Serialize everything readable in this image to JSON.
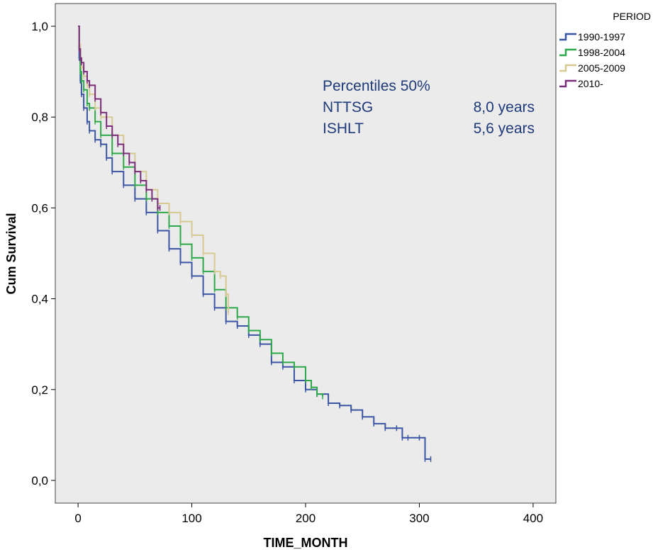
{
  "chart_data": {
    "type": "line",
    "xlabel": "TIME_MONTH",
    "ylabel": "Cum Survival",
    "xlim": [
      -20,
      420
    ],
    "ylim": [
      -0.05,
      1.05
    ],
    "x_ticks": [
      0,
      100,
      200,
      300,
      400
    ],
    "y_ticks": [
      0.0,
      0.2,
      0.4,
      0.6,
      0.8,
      1.0
    ],
    "x_tick_labels": [
      "0",
      "100",
      "200",
      "300",
      "400"
    ],
    "y_tick_labels": [
      "0,0",
      "0,2",
      "0,4",
      "0,6",
      "0,8",
      "1,0"
    ],
    "grid": false,
    "legend": {
      "title": "PERIOD",
      "position": "top-right"
    },
    "annotations": [
      {
        "label": "Percentiles 50%",
        "value": ""
      },
      {
        "label": "NTTSG",
        "value": "8,0 years"
      },
      {
        "label": "ISHLT",
        "value": "5,6 years"
      }
    ],
    "series": [
      {
        "name": "1990-1997",
        "color": "#3b54a4",
        "x": [
          0,
          1,
          2,
          3,
          5,
          8,
          10,
          15,
          20,
          25,
          30,
          40,
          50,
          60,
          70,
          80,
          90,
          100,
          110,
          120,
          130,
          140,
          150,
          160,
          170,
          180,
          190,
          200,
          210,
          220,
          230,
          240,
          250,
          260,
          270,
          280,
          285,
          290,
          300,
          305,
          310
        ],
        "y": [
          1.0,
          0.93,
          0.88,
          0.85,
          0.82,
          0.79,
          0.77,
          0.75,
          0.74,
          0.71,
          0.68,
          0.65,
          0.62,
          0.59,
          0.55,
          0.51,
          0.48,
          0.45,
          0.41,
          0.38,
          0.35,
          0.34,
          0.32,
          0.3,
          0.26,
          0.25,
          0.22,
          0.2,
          0.19,
          0.17,
          0.165,
          0.155,
          0.14,
          0.125,
          0.115,
          0.115,
          0.094,
          0.094,
          0.094,
          0.047,
          0.047
        ]
      },
      {
        "name": "1998-2004",
        "color": "#2ea84a",
        "x": [
          0,
          1,
          2,
          3,
          5,
          8,
          10,
          15,
          20,
          30,
          40,
          50,
          60,
          70,
          80,
          90,
          100,
          110,
          120,
          130,
          140,
          150,
          160,
          170,
          180,
          190,
          200,
          205,
          210,
          215
        ],
        "y": [
          1.0,
          0.95,
          0.9,
          0.88,
          0.86,
          0.83,
          0.82,
          0.79,
          0.76,
          0.72,
          0.69,
          0.65,
          0.62,
          0.59,
          0.56,
          0.52,
          0.49,
          0.46,
          0.42,
          0.38,
          0.36,
          0.33,
          0.31,
          0.28,
          0.26,
          0.25,
          0.22,
          0.205,
          0.19,
          0.185
        ]
      },
      {
        "name": "2005-2009",
        "color": "#d6ca92",
        "x": [
          0,
          1,
          2,
          3,
          5,
          8,
          10,
          15,
          20,
          30,
          40,
          50,
          60,
          70,
          80,
          90,
          100,
          110,
          120,
          125,
          130,
          132
        ],
        "y": [
          1.0,
          0.96,
          0.93,
          0.91,
          0.89,
          0.87,
          0.85,
          0.82,
          0.8,
          0.76,
          0.72,
          0.68,
          0.64,
          0.61,
          0.59,
          0.57,
          0.54,
          0.5,
          0.46,
          0.45,
          0.41,
          0.37
        ]
      },
      {
        "name": "2010-",
        "color": "#7b2d7b",
        "x": [
          0,
          1,
          2,
          3,
          5,
          8,
          10,
          15,
          20,
          25,
          30,
          35,
          40,
          45,
          50,
          55,
          60,
          65,
          70,
          72
        ],
        "y": [
          1.0,
          0.95,
          0.93,
          0.92,
          0.9,
          0.88,
          0.87,
          0.84,
          0.81,
          0.78,
          0.76,
          0.74,
          0.72,
          0.7,
          0.68,
          0.66,
          0.64,
          0.62,
          0.6,
          0.6
        ]
      }
    ]
  }
}
